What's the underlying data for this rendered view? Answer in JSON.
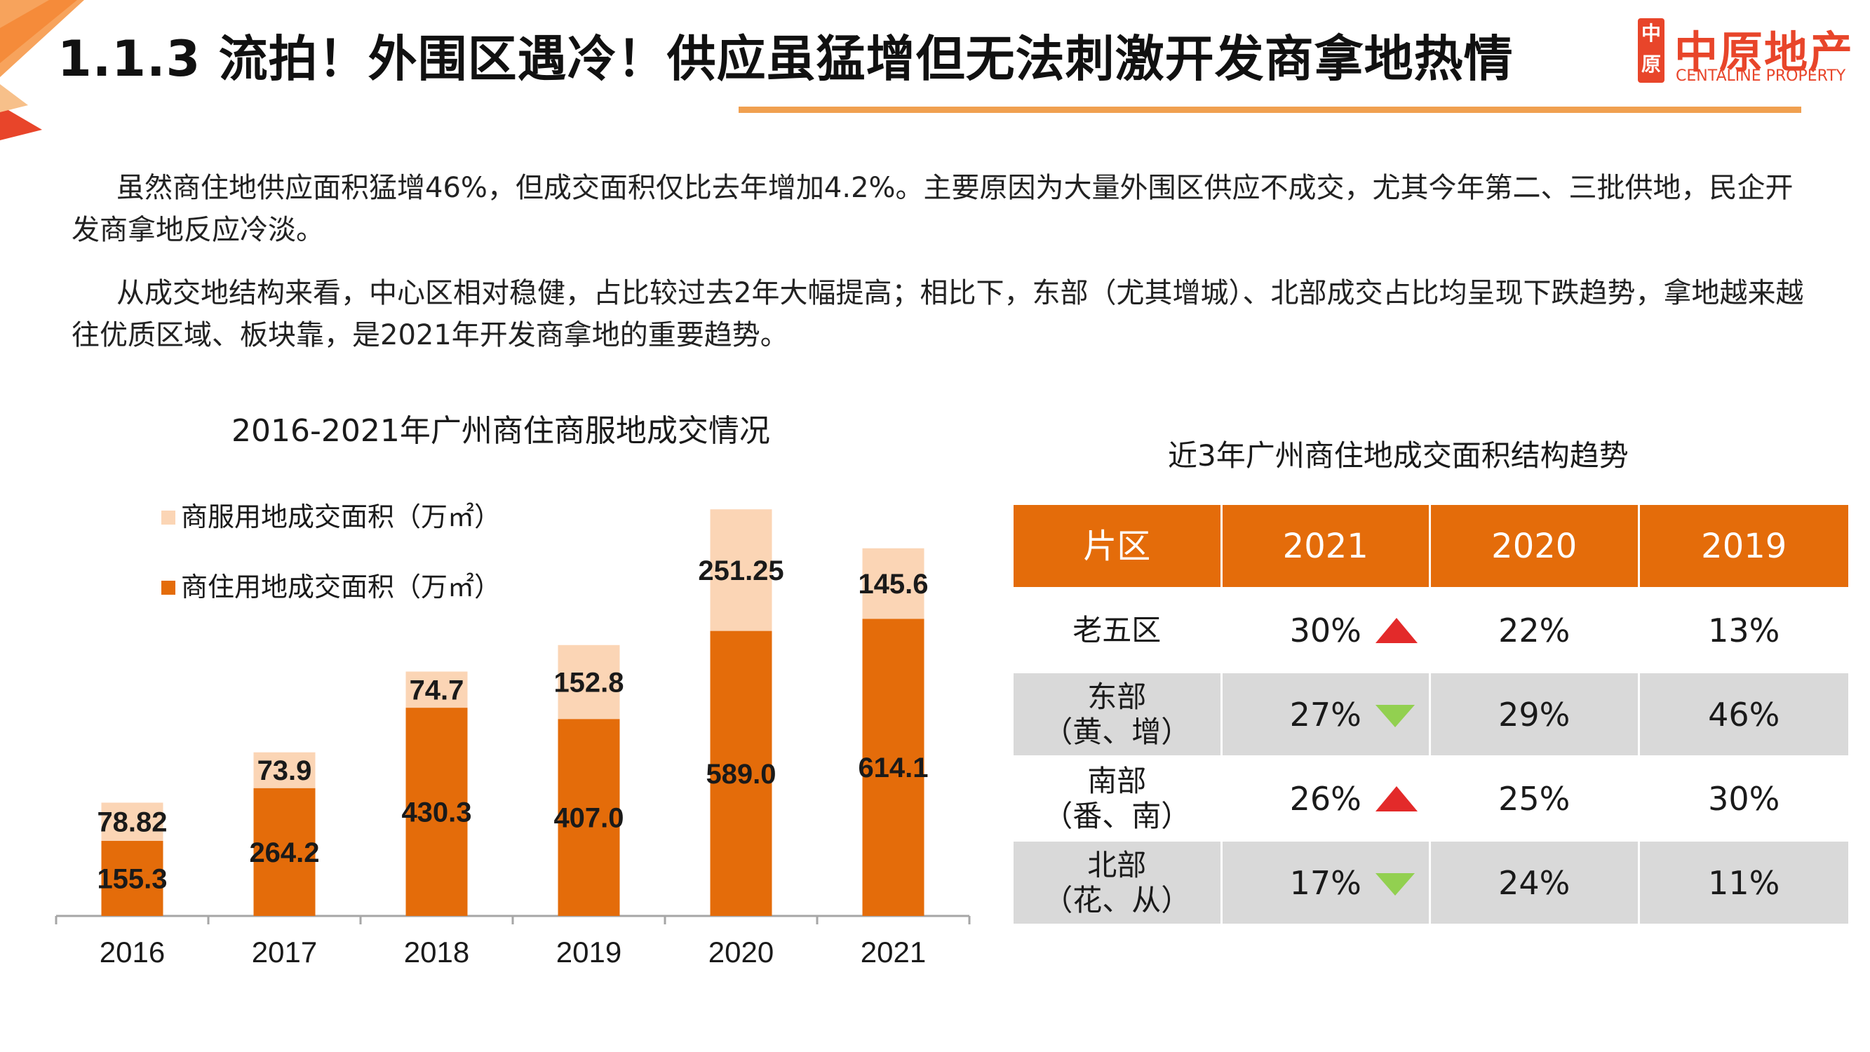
{
  "slide": {
    "title": "1.1.3 流拍！外围区遇冷！供应虽猛增但无法刺激开发商拿地热情",
    "accent_color": "#e46c0a",
    "rule_color": "#f0a050"
  },
  "logo": {
    "seal": "中原",
    "name_cn": "中原地产",
    "name_en": "CENTALINE PROPERTY",
    "color": "#e8452a"
  },
  "paragraphs": [
    "虽然商住地供应面积猛增46%，但成交面积仅比去年增加4.2%。主要原因为大量外围区供应不成交，尤其今年第二、三批供地，民企开发商拿地反应冷淡。",
    "从成交地结构来看，中心区相对稳健，占比较过去2年大幅提高；相比下，东部（尤其增城）、北部成交占比均呈现下跌趋势，拿地越来越往优质区域、板块靠，是2021年开发商拿地的重要趋势。"
  ],
  "chart_data": {
    "type": "bar",
    "stacked": true,
    "title": "2016-2021年广州商住商服地成交情况",
    "categories": [
      "2016",
      "2017",
      "2018",
      "2019",
      "2020",
      "2021"
    ],
    "series": [
      {
        "name": "商住用地成交面积（万㎡）",
        "values": [
          155.3,
          264.2,
          430.3,
          407.0,
          589.0,
          614.1
        ],
        "labels": [
          "155.3",
          "264.2",
          "430.3",
          "407.0",
          "589.0",
          "614.1"
        ],
        "color": "#e46c0a"
      },
      {
        "name": "商服用地成交面积（万㎡）",
        "values": [
          78.82,
          73.9,
          74.7,
          152.8,
          251.25,
          145.6
        ],
        "labels": [
          "78.82",
          "73.9",
          "74.7",
          "152.8",
          "251.25",
          "145.6"
        ],
        "color": "#fbd5b5"
      }
    ],
    "ylim": [
      0,
      900
    ],
    "grid": false,
    "legend_position": "top-left",
    "xlabel": "",
    "ylabel": ""
  },
  "table": {
    "title": "近3年广州商住地成交面积结构趋势",
    "headers": [
      "片区",
      "2021",
      "2020",
      "2019"
    ],
    "rows": [
      {
        "region_lines": [
          "老五区"
        ],
        "v2021": "30%",
        "trend": "up",
        "v2020": "22%",
        "v2019": "13%"
      },
      {
        "region_lines": [
          "东部",
          "（黄、增）"
        ],
        "v2021": "27%",
        "trend": "down",
        "v2020": "29%",
        "v2019": "46%"
      },
      {
        "region_lines": [
          "南部",
          "（番、南）"
        ],
        "v2021": "26%",
        "trend": "up",
        "v2020": "25%",
        "v2019": "30%"
      },
      {
        "region_lines": [
          "北部",
          "（花、从）"
        ],
        "v2021": "17%",
        "trend": "down",
        "v2020": "24%",
        "v2019": "11%"
      }
    ],
    "up_color": "#e32a2a",
    "down_color": "#92d050"
  }
}
